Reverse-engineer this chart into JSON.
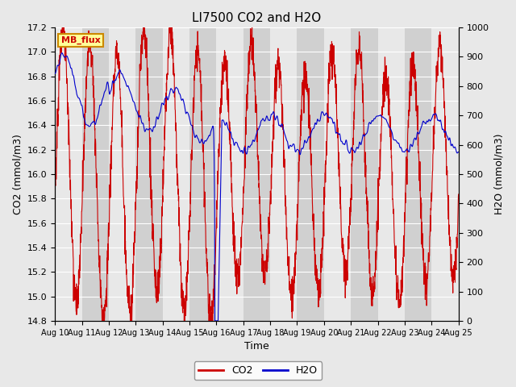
{
  "title": "LI7500 CO2 and H2O",
  "xlabel": "Time",
  "ylabel_left": "CO2 (mmol/m3)",
  "ylabel_right": "H2O (mmol/m3)",
  "xlim": [
    0,
    15
  ],
  "ylim_left": [
    14.8,
    17.2
  ],
  "ylim_right": [
    0,
    1000
  ],
  "yticks_left": [
    14.8,
    15.0,
    15.2,
    15.4,
    15.6,
    15.8,
    16.0,
    16.2,
    16.4,
    16.6,
    16.8,
    17.0,
    17.2
  ],
  "yticks_right": [
    0,
    100,
    200,
    300,
    400,
    500,
    600,
    700,
    800,
    900,
    1000
  ],
  "xtick_labels": [
    "Aug 10",
    "Aug 11",
    "Aug 12",
    "Aug 13",
    "Aug 14",
    "Aug 15",
    "Aug 16",
    "Aug 17",
    "Aug 18",
    "Aug 19",
    "Aug 20",
    "Aug 21",
    "Aug 22",
    "Aug 23",
    "Aug 24",
    "Aug 25"
  ],
  "co2_color": "#cc0000",
  "h2o_color": "#0000cc",
  "bg_color": "#e8e8e8",
  "plot_bg_light": "#e8e8e8",
  "plot_bg_dark": "#d0d0d0",
  "annotation_text": "MB_flux",
  "annotation_bg": "#ffff99",
  "annotation_border": "#cc8800",
  "legend_co2": "CO2",
  "legend_h2o": "H2O",
  "grid_color": "#ffffff",
  "linewidth": 0.8
}
